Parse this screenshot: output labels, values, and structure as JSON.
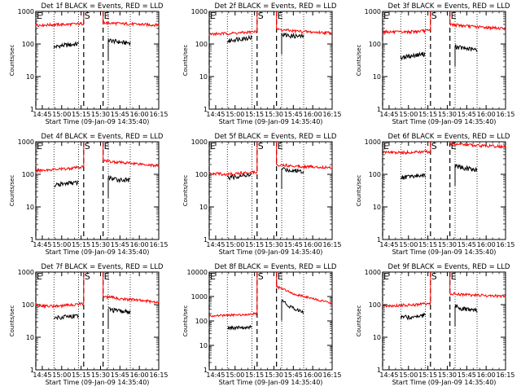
{
  "chart_data": [
    {
      "type": "line",
      "title": "Det 1f BLACK = Events, RED = LLD",
      "ylabel": "Counts/sec",
      "xlabel": "Start Time (09-Jan-09 14:35:40)",
      "y_scale": "log",
      "ylim": [
        1,
        1000
      ],
      "xlim": [
        "14:40",
        "16:15"
      ],
      "x_ticks": [
        "14:45",
        "15:00",
        "15:15",
        "15:30",
        "15:45",
        "16:00",
        "16:15"
      ],
      "y_ticks": [
        "1",
        "10",
        "100",
        "1000"
      ],
      "markers": [
        {
          "label": "E",
          "time": "14:40",
          "style": "dashed"
        },
        {
          "label": "S",
          "time": "15:17",
          "style": "dashed"
        },
        {
          "label": "E",
          "time": "15:32",
          "style": "dashed"
        }
      ],
      "vlines_dotted": [
        "14:54",
        "15:13",
        "15:36",
        "15:53"
      ],
      "series": [
        {
          "color": "#000000",
          "segments": [
            {
              "start": "14:54",
              "end": "15:13",
              "values": [
                80,
                90,
                95,
                100
              ]
            },
            {
              "start": "15:36",
              "end": "15:53",
              "values": [
                130,
                120,
                110,
                108
              ]
            }
          ]
        },
        {
          "color": "#ff0000",
          "segments": [
            {
              "start": "14:40",
              "end": "15:17",
              "values": [
                380,
                390,
                400,
                420
              ]
            },
            {
              "start": "15:32",
              "end": "16:15",
              "values": [
                450,
                420,
                400,
                380
              ]
            }
          ]
        }
      ]
    },
    {
      "type": "line",
      "title": "Det 2f BLACK = Events, RED = LLD",
      "ylabel": "Counts/sec",
      "xlabel": "Start Time (09-Jan-09 14:35:40)",
      "y_scale": "log",
      "ylim": [
        1,
        1000
      ],
      "xlim": [
        "14:40",
        "16:15"
      ],
      "x_ticks": [
        "14:45",
        "15:00",
        "15:15",
        "15:30",
        "15:45",
        "16:00",
        "16:15"
      ],
      "y_ticks": [
        "1",
        "10",
        "100",
        "1000"
      ],
      "markers": [
        {
          "label": "E",
          "time": "14:40",
          "style": "dashed"
        },
        {
          "label": "S",
          "time": "15:17",
          "style": "dashed"
        },
        {
          "label": "E",
          "time": "15:32",
          "style": "dashed"
        }
      ],
      "vlines_dotted": [
        "14:54",
        "15:13",
        "15:36",
        "15:53"
      ],
      "series": [
        {
          "color": "#000000",
          "segments": [
            {
              "start": "14:54",
              "end": "15:13",
              "values": [
                120,
                140,
                150,
                160
              ]
            },
            {
              "start": "15:36",
              "end": "15:53",
              "values": [
                200,
                180,
                175,
                170
              ]
            }
          ]
        },
        {
          "color": "#ff0000",
          "segments": [
            {
              "start": "14:40",
              "end": "15:17",
              "values": [
                200,
                210,
                220,
                240
              ]
            },
            {
              "start": "15:32",
              "end": "16:15",
              "values": [
                280,
                250,
                230,
                220
              ]
            }
          ]
        }
      ]
    },
    {
      "type": "line",
      "title": "Det 3f BLACK = Events, RED = LLD",
      "ylabel": "Counts/sec",
      "xlabel": "Start Time (09-Jan-09 14:35:40)",
      "y_scale": "log",
      "ylim": [
        1,
        1000
      ],
      "xlim": [
        "14:40",
        "16:15"
      ],
      "x_ticks": [
        "14:45",
        "15:00",
        "15:15",
        "15:30",
        "15:45",
        "16:00",
        "16:15"
      ],
      "y_ticks": [
        "1",
        "10",
        "100",
        "1000"
      ],
      "markers": [
        {
          "label": "E",
          "time": "14:40",
          "style": "dashed"
        },
        {
          "label": "S",
          "time": "15:17",
          "style": "dashed"
        },
        {
          "label": "E",
          "time": "15:32",
          "style": "dashed"
        }
      ],
      "vlines_dotted": [
        "14:54",
        "15:13",
        "15:36",
        "15:53"
      ],
      "series": [
        {
          "color": "#000000",
          "segments": [
            {
              "start": "14:54",
              "end": "15:13",
              "values": [
                38,
                42,
                46,
                50
              ]
            },
            {
              "start": "15:36",
              "end": "15:53",
              "values": [
                85,
                75,
                70,
                65
              ]
            }
          ]
        },
        {
          "color": "#ff0000",
          "segments": [
            {
              "start": "14:40",
              "end": "15:17",
              "values": [
                240,
                230,
                240,
                260
              ]
            },
            {
              "start": "15:32",
              "end": "16:15",
              "values": [
                400,
                350,
                320,
                300
              ]
            }
          ]
        }
      ]
    },
    {
      "type": "line",
      "title": "Det 4f BLACK = Events, RED = LLD",
      "ylabel": "Counts/sec",
      "xlabel": "Start Time (09-Jan-09 14:35:40)",
      "y_scale": "log",
      "ylim": [
        1,
        1000
      ],
      "xlim": [
        "14:40",
        "16:15"
      ],
      "x_ticks": [
        "14:45",
        "15:00",
        "15:15",
        "15:30",
        "15:45",
        "16:00",
        "16:15"
      ],
      "y_ticks": [
        "1",
        "10",
        "100",
        "1000"
      ],
      "markers": [
        {
          "label": "E",
          "time": "14:40",
          "style": "dashed"
        },
        {
          "label": "S",
          "time": "15:17",
          "style": "dashed"
        },
        {
          "label": "E",
          "time": "15:32",
          "style": "dashed"
        }
      ],
      "vlines_dotted": [
        "14:54",
        "15:13",
        "15:36",
        "15:53"
      ],
      "series": [
        {
          "color": "#000000",
          "segments": [
            {
              "start": "14:54",
              "end": "15:13",
              "values": [
                45,
                50,
                55,
                55
              ]
            },
            {
              "start": "15:36",
              "end": "15:53",
              "values": [
                80,
                70,
                68,
                66
              ]
            }
          ]
        },
        {
          "color": "#ff0000",
          "segments": [
            {
              "start": "14:40",
              "end": "15:17",
              "values": [
                130,
                140,
                150,
                170
              ]
            },
            {
              "start": "15:32",
              "end": "16:15",
              "values": [
                260,
                230,
                210,
                180
              ]
            }
          ]
        }
      ]
    },
    {
      "type": "line",
      "title": "Det 5f BLACK = Events, RED = LLD",
      "ylabel": "Counts/sec",
      "xlabel": "Start Time (09-Jan-09 14:35:40)",
      "y_scale": "log",
      "ylim": [
        1,
        1000
      ],
      "xlim": [
        "14:40",
        "16:15"
      ],
      "x_ticks": [
        "14:45",
        "15:00",
        "15:15",
        "15:30",
        "15:45",
        "16:00",
        "16:15"
      ],
      "y_ticks": [
        "1",
        "10",
        "100",
        "1000"
      ],
      "markers": [
        {
          "label": "E",
          "time": "14:40",
          "style": "dashed"
        },
        {
          "label": "S",
          "time": "15:17",
          "style": "dashed"
        },
        {
          "label": "E",
          "time": "15:32",
          "style": "dashed"
        }
      ],
      "vlines_dotted": [
        "14:54",
        "15:13",
        "15:36",
        "15:53"
      ],
      "series": [
        {
          "color": "#000000",
          "segments": [
            {
              "start": "14:54",
              "end": "15:13",
              "values": [
                80,
                85,
                90,
                95
              ]
            },
            {
              "start": "15:36",
              "end": "15:53",
              "values": [
                150,
                135,
                130,
                125
              ]
            }
          ]
        },
        {
          "color": "#ff0000",
          "segments": [
            {
              "start": "14:40",
              "end": "15:17",
              "values": [
                110,
                100,
                110,
                120
              ]
            },
            {
              "start": "15:32",
              "end": "16:15",
              "values": [
                200,
                180,
                170,
                160
              ]
            }
          ]
        }
      ]
    },
    {
      "type": "line",
      "title": "Det 6f BLACK = Events, RED = LLD",
      "ylabel": "Counts/sec",
      "xlabel": "Start Time (09-Jan-09 14:35:40)",
      "y_scale": "log",
      "ylim": [
        1,
        1000
      ],
      "xlim": [
        "14:40",
        "16:15"
      ],
      "x_ticks": [
        "14:45",
        "15:00",
        "15:15",
        "15:30",
        "15:45",
        "16:00",
        "16:15"
      ],
      "y_ticks": [
        "1",
        "10",
        "100",
        "1000"
      ],
      "markers": [
        {
          "label": "E",
          "time": "14:40",
          "style": "dashed"
        },
        {
          "label": "S",
          "time": "15:17",
          "style": "dashed"
        },
        {
          "label": "E",
          "time": "15:32",
          "style": "dashed"
        }
      ],
      "vlines_dotted": [
        "14:54",
        "15:13",
        "15:36",
        "15:53"
      ],
      "series": [
        {
          "color": "#000000",
          "segments": [
            {
              "start": "14:54",
              "end": "15:13",
              "values": [
                80,
                85,
                90,
                95
              ]
            },
            {
              "start": "15:36",
              "end": "15:53",
              "values": [
                190,
                160,
                150,
                140
              ]
            }
          ]
        },
        {
          "color": "#ff0000",
          "segments": [
            {
              "start": "14:40",
              "end": "15:17",
              "values": [
                480,
                460,
                480,
                500
              ]
            },
            {
              "start": "15:32",
              "end": "16:15",
              "values": [
                900,
                800,
                750,
                700
              ]
            }
          ]
        }
      ]
    },
    {
      "type": "line",
      "title": "Det 7f BLACK = Events, RED = LLD",
      "ylabel": "Counts/sec",
      "xlabel": "Start Time (09-Jan-09 14:35:40)",
      "y_scale": "log",
      "ylim": [
        1,
        1000
      ],
      "xlim": [
        "14:40",
        "16:15"
      ],
      "x_ticks": [
        "14:45",
        "15:00",
        "15:15",
        "15:30",
        "15:45",
        "16:00",
        "16:15"
      ],
      "y_ticks": [
        "1",
        "10",
        "100",
        "1000"
      ],
      "markers": [
        {
          "label": "E",
          "time": "14:40",
          "style": "dashed"
        },
        {
          "label": "S",
          "time": "15:17",
          "style": "dashed"
        },
        {
          "label": "E",
          "time": "15:32",
          "style": "dashed"
        }
      ],
      "vlines_dotted": [
        "14:54",
        "15:13",
        "15:36",
        "15:53"
      ],
      "series": [
        {
          "color": "#000000",
          "segments": [
            {
              "start": "14:54",
              "end": "15:13",
              "values": [
                40,
                42,
                45,
                45
              ]
            },
            {
              "start": "15:36",
              "end": "15:53",
              "values": [
                75,
                65,
                62,
                60
              ]
            }
          ]
        },
        {
          "color": "#ff0000",
          "segments": [
            {
              "start": "14:40",
              "end": "15:17",
              "values": [
                95,
                90,
                95,
                110
              ]
            },
            {
              "start": "15:32",
              "end": "16:15",
              "values": [
                180,
                150,
                135,
                120
              ]
            }
          ]
        }
      ]
    },
    {
      "type": "line",
      "title": "Det 8f BLACK = Events, RED = LLD",
      "ylabel": "Counts/sec",
      "xlabel": "Start Time (09-Jan-09 14:35:40)",
      "y_scale": "log",
      "ylim": [
        1,
        10000
      ],
      "xlim": [
        "14:40",
        "16:15"
      ],
      "x_ticks": [
        "14:45",
        "15:00",
        "15:15",
        "15:30",
        "15:45",
        "16:00",
        "16:15"
      ],
      "y_ticks": [
        "1",
        "10",
        "100",
        "1000",
        "10000"
      ],
      "markers": [
        {
          "label": "E",
          "time": "14:40",
          "style": "dashed"
        },
        {
          "label": "S",
          "time": "15:17",
          "style": "dashed"
        },
        {
          "label": "E",
          "time": "15:32",
          "style": "dashed"
        }
      ],
      "vlines_dotted": [
        "14:54",
        "15:13",
        "15:36",
        "15:53"
      ],
      "series": [
        {
          "color": "#000000",
          "segments": [
            {
              "start": "14:54",
              "end": "15:13",
              "values": [
                50,
                52,
                55,
                58
              ]
            },
            {
              "start": "15:36",
              "end": "15:53",
              "values": [
                700,
                400,
                300,
                220
              ]
            }
          ]
        },
        {
          "color": "#ff0000",
          "segments": [
            {
              "start": "14:40",
              "end": "15:17",
              "values": [
                160,
                170,
                180,
                200
              ]
            },
            {
              "start": "15:32",
              "end": "16:15",
              "values": [
                2500,
                1200,
                800,
                500
              ]
            }
          ]
        }
      ]
    },
    {
      "type": "line",
      "title": "Det 9f BLACK = Events, RED = LLD",
      "ylabel": "Counts/sec",
      "xlabel": "Start Time (09-Jan-09 14:35:40)",
      "y_scale": "log",
      "ylim": [
        1,
        1000
      ],
      "xlim": [
        "14:40",
        "16:15"
      ],
      "x_ticks": [
        "14:45",
        "15:00",
        "15:15",
        "15:30",
        "15:45",
        "16:00",
        "16:15"
      ],
      "y_ticks": [
        "1",
        "10",
        "100",
        "1000"
      ],
      "markers": [
        {
          "label": "E",
          "time": "14:40",
          "style": "dashed"
        },
        {
          "label": "S",
          "time": "15:17",
          "style": "dashed"
        },
        {
          "label": "E",
          "time": "15:32",
          "style": "dashed"
        }
      ],
      "vlines_dotted": [
        "14:54",
        "15:13",
        "15:36",
        "15:53"
      ],
      "series": [
        {
          "color": "#000000",
          "segments": [
            {
              "start": "14:54",
              "end": "15:13",
              "values": [
                40,
                42,
                45,
                48
              ]
            },
            {
              "start": "15:36",
              "end": "15:53",
              "values": [
                90,
                75,
                70,
                65
              ]
            }
          ]
        },
        {
          "color": "#ff0000",
          "segments": [
            {
              "start": "14:40",
              "end": "15:17",
              "values": [
                90,
                95,
                100,
                110
              ]
            },
            {
              "start": "15:32",
              "end": "16:15",
              "values": [
                220,
                200,
                190,
                180
              ]
            }
          ]
        }
      ]
    }
  ]
}
